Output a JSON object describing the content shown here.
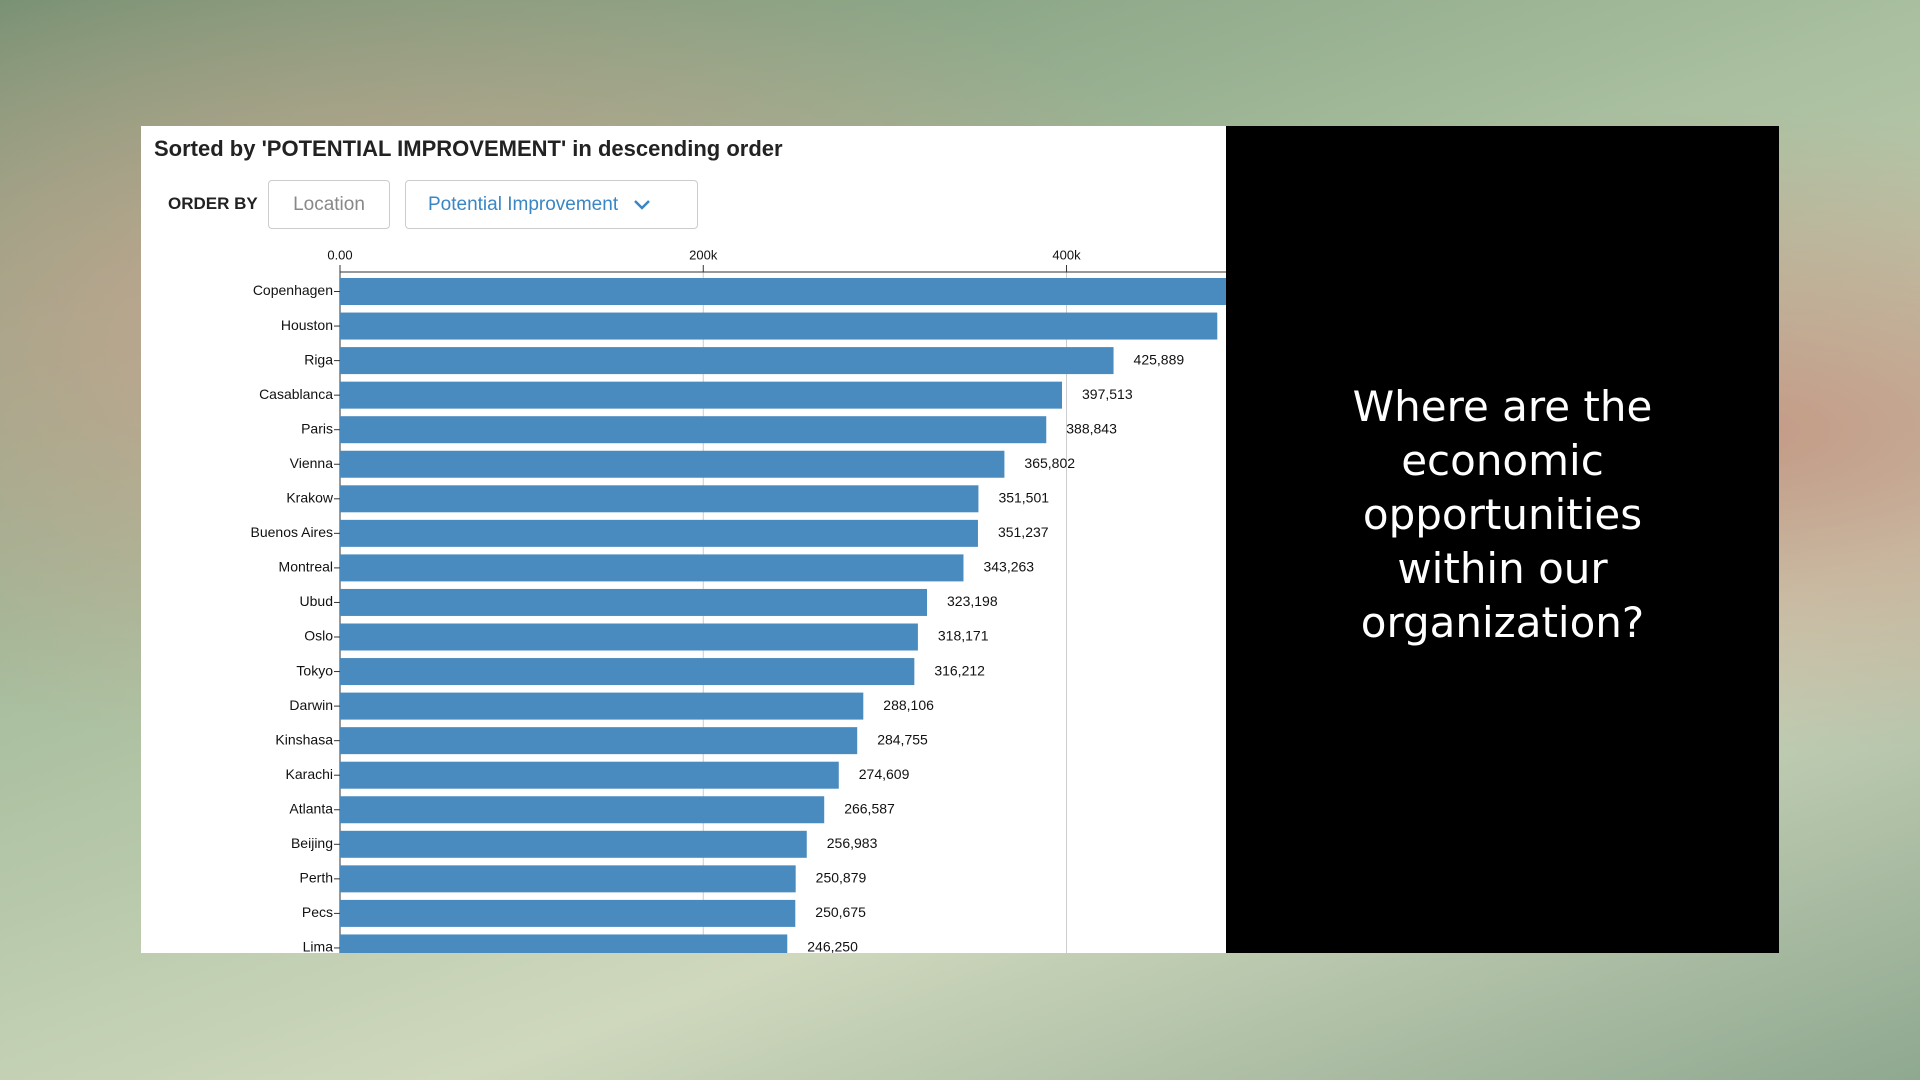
{
  "slide": {
    "question": "Where are the economic opportunities within our organization?"
  },
  "controls": {
    "order_by_label": "ORDER BY",
    "options": [
      "Location",
      "Potential Improvement"
    ]
  },
  "chart_data": {
    "type": "bar",
    "orientation": "horizontal",
    "title": "Sorted by 'POTENTIAL IMPROVEMENT' in descending order",
    "categories": [
      "Copenhagen",
      "Houston",
      "Riga",
      "Casablanca",
      "Paris",
      "Vienna",
      "Krakow",
      "Buenos Aires",
      "Montreal",
      "Ubud",
      "Oslo",
      "Tokyo",
      "Darwin",
      "Kinshasa",
      "Karachi",
      "Atlanta",
      "Beijing",
      "Perth",
      "Pecs",
      "Lima"
    ],
    "values": [
      500000,
      483000,
      425889,
      397513,
      388843,
      365802,
      351501,
      351237,
      343263,
      323198,
      318171,
      316212,
      288106,
      284755,
      274609,
      266587,
      256983,
      250879,
      250675,
      246250
    ],
    "value_labels": [
      null,
      null,
      "425,889",
      "397,513",
      "388,843",
      "365,802",
      "351,501",
      "351,237",
      "343,263",
      "323,198",
      "318,171",
      "316,212",
      "288,106",
      "284,755",
      "274,609",
      "266,587",
      "256,983",
      "250,879",
      "250,675",
      "246,250"
    ],
    "color": "#4a8bbf",
    "xlim": [
      0,
      487800
    ],
    "xticks": [
      {
        "value": 0,
        "label": "0.00"
      },
      {
        "value": 200000,
        "label": "200k"
      },
      {
        "value": 400000,
        "label": "400k"
      }
    ],
    "grid": true
  }
}
